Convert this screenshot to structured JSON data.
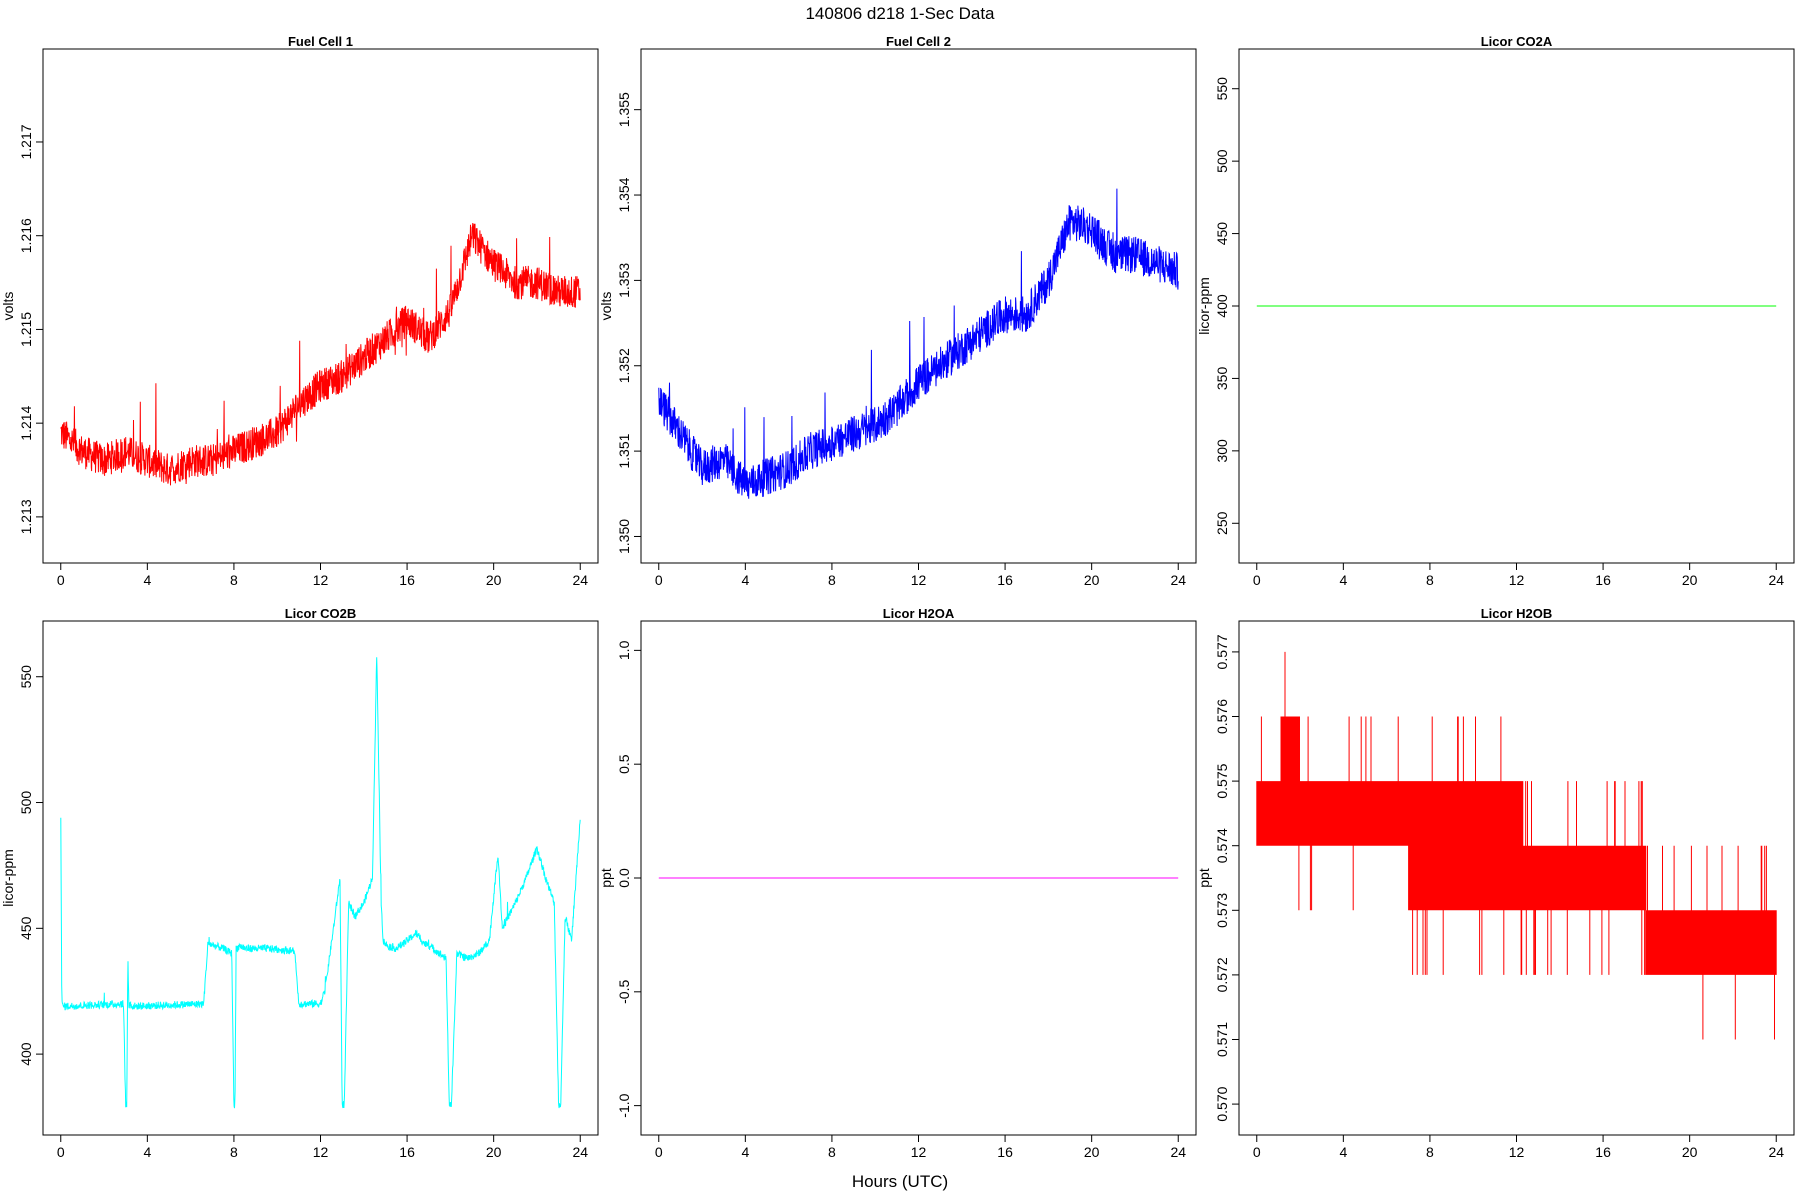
{
  "figure": {
    "title": "140806   d218   1-Sec Data",
    "xlabel": "Hours (UTC)"
  },
  "chart_data": [
    {
      "type": "line",
      "title": "Fuel Cell 1",
      "ylabel": "volts",
      "color": "#ff0000",
      "xlim": [
        0,
        24
      ],
      "ylim": [
        1.2127,
        1.2178
      ],
      "xticks": [
        0,
        4,
        8,
        12,
        16,
        20,
        24
      ],
      "yticks": [
        1.213,
        1.214,
        1.215,
        1.216,
        1.217
      ],
      "ytick_labels": [
        "1.213",
        "1.214",
        "1.215",
        "1.216",
        "1.217"
      ],
      "x": [
        0,
        1,
        2,
        3,
        4,
        5,
        6,
        7,
        8,
        9,
        10,
        11,
        12,
        13,
        14,
        15,
        16,
        17,
        18,
        19,
        20,
        21,
        22,
        23,
        24
      ],
      "y": [
        1.2139,
        1.2137,
        1.2136,
        1.2137,
        1.2136,
        1.2135,
        1.2136,
        1.2136,
        1.2137,
        1.2138,
        1.2139,
        1.2142,
        1.2144,
        1.2145,
        1.2147,
        1.2149,
        1.2151,
        1.2149,
        1.2152,
        1.216,
        1.2157,
        1.2155,
        1.2155,
        1.2154,
        1.2154
      ],
      "noise": 0.00018
    },
    {
      "type": "line",
      "title": "Fuel Cell 2",
      "ylabel": "volts",
      "color": "#0000ff",
      "xlim": [
        0,
        24
      ],
      "ylim": [
        1.3499,
        1.3555
      ],
      "xticks": [
        0,
        4,
        8,
        12,
        16,
        20,
        24
      ],
      "yticks": [
        1.35,
        1.351,
        1.352,
        1.353,
        1.354,
        1.355
      ],
      "ytick_labels": [
        "1.350",
        "1.351",
        "1.352",
        "1.353",
        "1.354",
        "1.355"
      ],
      "x": [
        0,
        1,
        2,
        3,
        4,
        5,
        6,
        7,
        8,
        9,
        10,
        11,
        12,
        13,
        14,
        15,
        16,
        17,
        18,
        19,
        20,
        21,
        22,
        23,
        24
      ],
      "y": [
        1.3516,
        1.3512,
        1.3508,
        1.3509,
        1.3506,
        1.3507,
        1.3508,
        1.351,
        1.3511,
        1.3512,
        1.3513,
        1.3515,
        1.3518,
        1.352,
        1.3522,
        1.3524,
        1.3526,
        1.3526,
        1.353,
        1.3537,
        1.3536,
        1.3533,
        1.3533,
        1.3532,
        1.3531
      ],
      "noise": 0.00022
    },
    {
      "type": "line",
      "title": "Licor CO2A",
      "ylabel": "licor-ppm",
      "color": "#00ff00",
      "xlim": [
        0,
        24
      ],
      "ylim": [
        235,
        565
      ],
      "xticks": [
        0,
        4,
        8,
        12,
        16,
        20,
        24
      ],
      "yticks": [
        250,
        300,
        350,
        400,
        450,
        500,
        550
      ],
      "ytick_labels": [
        "250",
        "300",
        "350",
        "400",
        "450",
        "500",
        "550"
      ],
      "x": [
        0,
        24
      ],
      "y": [
        400,
        400
      ],
      "noise": 0
    },
    {
      "type": "line",
      "title": "Licor CO2B",
      "ylabel": "licor-ppm",
      "color": "#00ffff",
      "xlim": [
        0,
        24
      ],
      "ylim": [
        375,
        565
      ],
      "xticks": [
        0,
        4,
        8,
        12,
        16,
        20,
        24
      ],
      "yticks": [
        400,
        450,
        500,
        550
      ],
      "ytick_labels": [
        "400",
        "450",
        "500",
        "550"
      ],
      "x": [
        0,
        0.05,
        0.1,
        2.9,
        3.0,
        3.05,
        3.1,
        3.15,
        3.2,
        3.3,
        6.6,
        6.8,
        7.5,
        7.9,
        8.0,
        8.05,
        8.1,
        8.3,
        8.5,
        9.5,
        10.8,
        11.0,
        12.0,
        12.2,
        12.6,
        12.9,
        13.0,
        13.1,
        13.3,
        13.6,
        14.0,
        14.4,
        14.6,
        14.8,
        14.9,
        15.1,
        15.5,
        16.0,
        16.4,
        16.8,
        17.2,
        17.8,
        17.95,
        18.05,
        18.3,
        18.8,
        19.3,
        19.8,
        20.2,
        20.4,
        20.7,
        21.0,
        21.5,
        22.0,
        22.4,
        22.8,
        23.0,
        23.1,
        23.3,
        23.6,
        24.0
      ],
      "y": [
        495,
        420,
        419,
        420,
        380,
        380,
        438,
        419,
        420,
        419,
        420,
        444,
        442,
        440,
        380,
        380,
        442,
        443,
        442,
        442,
        441,
        420,
        420,
        425,
        450,
        470,
        380,
        380,
        460,
        455,
        460,
        470,
        560,
        460,
        445,
        443,
        442,
        445,
        448,
        444,
        442,
        438,
        380,
        380,
        440,
        438,
        440,
        445,
        480,
        450,
        455,
        460,
        470,
        482,
        470,
        460,
        380,
        380,
        455,
        445,
        494
      ],
      "noise": 1.5
    },
    {
      "type": "line",
      "title": "Licor H2OA",
      "ylabel": "ppt",
      "color": "#ff00ff",
      "xlim": [
        0,
        24
      ],
      "ylim": [
        -1.05,
        1.05
      ],
      "xticks": [
        0,
        4,
        8,
        12,
        16,
        20,
        24
      ],
      "yticks": [
        -1.0,
        -0.5,
        0.0,
        0.5,
        1.0
      ],
      "ytick_labels": [
        "-1.0",
        "-0.5",
        "0.0",
        "0.5",
        "1.0"
      ],
      "x": [
        0,
        24
      ],
      "y": [
        0,
        0
      ],
      "noise": 0
    },
    {
      "type": "line",
      "title": "Licor H2OB",
      "ylabel": "ppt",
      "color": "#ff0000",
      "xlim": [
        0,
        24
      ],
      "ylim": [
        0.5698,
        0.5772
      ],
      "xticks": [
        0,
        4,
        8,
        12,
        16,
        20,
        24
      ],
      "yticks": [
        0.57,
        0.571,
        0.572,
        0.573,
        0.574,
        0.575,
        0.576,
        0.577
      ],
      "ytick_labels": [
        "0.570",
        "0.571",
        "0.572",
        "0.573",
        "0.574",
        "0.575",
        "0.576",
        "0.577"
      ],
      "x": [
        0,
        24
      ],
      "y": [
        0.5745,
        0.5725
      ],
      "quantized": true,
      "bands": [
        {
          "x0": 0,
          "x1": 1.1,
          "lo": 0.574,
          "hi": 0.575
        },
        {
          "x0": 1.1,
          "x1": 2.0,
          "lo": 0.574,
          "hi": 0.576
        },
        {
          "x0": 2.0,
          "x1": 7.0,
          "lo": 0.574,
          "hi": 0.575
        },
        {
          "x0": 7.0,
          "x1": 10.0,
          "lo": 0.573,
          "hi": 0.575
        },
        {
          "x0": 10.0,
          "x1": 12.3,
          "lo": 0.573,
          "hi": 0.575
        },
        {
          "x0": 12.3,
          "x1": 18.0,
          "lo": 0.573,
          "hi": 0.574
        },
        {
          "x0": 18.0,
          "x1": 24.0,
          "lo": 0.572,
          "hi": 0.573
        }
      ]
    }
  ]
}
